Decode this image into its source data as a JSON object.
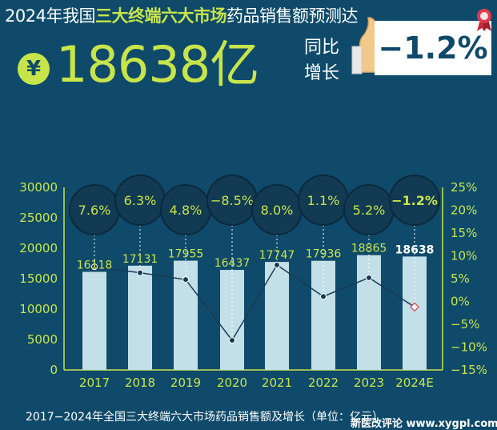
{
  "headline": {
    "prefix": "2024年我国",
    "highlight": "三大终端六大市场",
    "suffix": "药品销售额预测达"
  },
  "currency_symbol": "¥",
  "total": "18638亿",
  "yoy": {
    "label": "同比增长",
    "value": "−1.2%"
  },
  "icons": [
    "yen-icon",
    "thumb-icon",
    "ribbon-icon"
  ],
  "colors": {
    "background": "#0f4a6a",
    "accent": "#c7e54a",
    "bar": "#c3dfe8",
    "bubble": "#123a52"
  },
  "chart_data": {
    "type": "bar",
    "categories": [
      "2017",
      "2018",
      "2019",
      "2020",
      "2021",
      "2022",
      "2023",
      "2024E"
    ],
    "series": [
      {
        "values": [
          16118,
          17131,
          17955,
          16437,
          17747,
          17936,
          18865,
          18638
        ]
      },
      {
        "values": [
          7.6,
          6.3,
          4.8,
          -8.5,
          8.0,
          1.1,
          5.2,
          -1.2
        ]
      }
    ],
    "value_labels": [
      "16118",
      "17131",
      "17955",
      "16437",
      "17747",
      "17936",
      "18865",
      "18638"
    ],
    "growth_labels": [
      "7.6%",
      "6.3%",
      "4.8%",
      "−8.5%",
      "8.0%",
      "1.1%",
      "5.2%",
      "−1.2%"
    ],
    "left_ticks": [
      "30000",
      "25000",
      "20000",
      "15000",
      "10000",
      "5000",
      "0"
    ],
    "right_ticks": [
      "25%",
      "20%",
      "15%",
      "10%",
      "5%",
      "0%",
      "−5%",
      "−10%",
      "−15%"
    ],
    "ylim": [
      0,
      30000
    ],
    "y2lim": [
      -15,
      25
    ],
    "grid": false
  },
  "caption": "2017−2024年全国三大终端六大市场药品销售额及增长（单位：亿元）",
  "watermark": "新医改评论 www.xygpl.com"
}
